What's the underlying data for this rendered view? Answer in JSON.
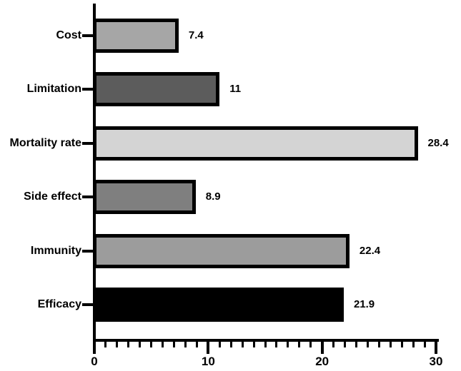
{
  "chart_data": {
    "type": "bar",
    "orientation": "horizontal",
    "title": "",
    "xlabel": "",
    "ylabel": "",
    "categories": [
      "Cost",
      "Limitation",
      "Mortality rate",
      "Side effect",
      "Immunity",
      "Efficacy"
    ],
    "values": [
      7.4,
      11,
      28.4,
      8.9,
      22.4,
      21.9
    ],
    "value_labels": [
      "7.4",
      "11",
      "28.4",
      "8.9",
      "22.4",
      "21.9"
    ],
    "bar_colors": [
      "#a6a6a6",
      "#5c5c5c",
      "#d4d4d4",
      "#7f7f7f",
      "#9c9c9c",
      "#000000"
    ],
    "bar_border_color": "#000000",
    "xlim": [
      0,
      30
    ],
    "x_major_ticks": [
      0,
      10,
      20,
      30
    ],
    "x_major_tick_labels": [
      "0",
      "10",
      "20",
      "30"
    ],
    "x_minor_tick_interval": 1,
    "grid": false,
    "legend": false,
    "axis_color": "#000000",
    "background_color": "#ffffff"
  }
}
